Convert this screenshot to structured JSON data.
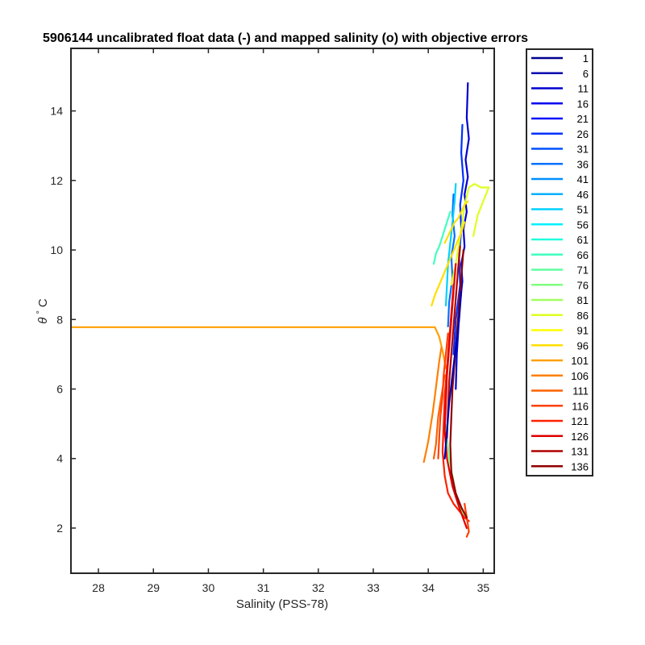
{
  "chart_data": {
    "type": "line",
    "title": "5906144 uncalibrated float data (-) and mapped salinity (o) with objective errors",
    "xlabel": "Salinity (PSS-78)",
    "ylabel_symbol": "θ",
    "ylabel_degree": "°",
    "ylabel_unit": "C",
    "xlim": [
      27.5,
      35.2
    ],
    "ylim": [
      0.7,
      15.8
    ],
    "xticks": [
      "28",
      "29",
      "30",
      "31",
      "32",
      "33",
      "34",
      "35"
    ],
    "yticks": [
      "2",
      "4",
      "6",
      "8",
      "10",
      "12",
      "14"
    ],
    "grid": false,
    "legend_position": "outside-right",
    "legend": [
      "1",
      "6",
      "11",
      "16",
      "21",
      "26",
      "31",
      "36",
      "41",
      "46",
      "51",
      "56",
      "61",
      "66",
      "71",
      "76",
      "81",
      "86",
      "91",
      "96",
      "101",
      "106",
      "111",
      "116",
      "121",
      "126",
      "131",
      "136"
    ],
    "legend_colors": [
      "#00008f",
      "#0000b0",
      "#0000d0",
      "#0000f0",
      "#0010ff",
      "#0030ff",
      "#0050ff",
      "#0070ff",
      "#0090ff",
      "#00b0ff",
      "#00d0ff",
      "#00f0ff",
      "#20ffdf",
      "#40ffbf",
      "#60ff9f",
      "#80ff80",
      "#9fff60",
      "#dfff20",
      "#ffff00",
      "#ffdf00",
      "#ff9f00",
      "#ff8000",
      "#ff6000",
      "#ff4000",
      "#ff2000",
      "#df0000",
      "#b00000",
      "#900000"
    ],
    "series": [
      {
        "color": "#0000d0",
        "x": [
          34.72,
          34.7,
          34.74,
          34.68,
          34.72,
          34.66,
          34.7,
          34.64,
          34.66,
          34.6,
          34.62,
          34.58,
          34.55,
          34.52,
          34.5
        ],
        "y": [
          14.8,
          13.8,
          13.2,
          12.6,
          12.1,
          11.6,
          11.1,
          10.6,
          10.1,
          9.6,
          9.1,
          8.5,
          7.8,
          7.0,
          6.0
        ]
      },
      {
        "color": "#0030ff",
        "x": [
          34.62,
          34.6,
          34.64,
          34.58,
          34.6,
          34.56,
          34.58,
          34.5,
          34.46
        ],
        "y": [
          13.6,
          12.8,
          12.0,
          11.3,
          10.6,
          9.8,
          9.0,
          8.0,
          7.0
        ]
      },
      {
        "color": "#0070ff",
        "x": [
          34.46,
          34.44,
          34.48,
          34.42,
          34.44,
          34.38,
          34.36
        ],
        "y": [
          11.6,
          11.0,
          10.4,
          9.8,
          9.2,
          8.5,
          7.8
        ]
      },
      {
        "color": "#00d0ff",
        "x": [
          34.5,
          34.48,
          34.44,
          34.4,
          34.36,
          34.34,
          34.32
        ],
        "y": [
          11.9,
          11.4,
          10.8,
          10.2,
          9.6,
          9.0,
          8.4
        ]
      },
      {
        "color": "#40ffbf",
        "x": [
          34.1,
          34.14,
          34.2,
          34.26,
          34.3,
          34.36,
          34.4
        ],
        "y": [
          9.6,
          9.9,
          10.1,
          10.4,
          10.6,
          10.9,
          11.1
        ]
      },
      {
        "color": "#80ff80",
        "x": [
          34.3,
          34.34,
          34.38,
          34.44,
          34.5,
          34.56,
          34.6,
          34.66
        ],
        "y": [
          5.1,
          4.6,
          4.0,
          3.5,
          3.0,
          2.7,
          2.5,
          2.3
        ]
      },
      {
        "color": "#dfff20",
        "x": [
          34.42,
          34.5,
          34.56,
          34.62,
          34.66,
          34.74,
          34.84,
          34.96,
          35.1,
          35.05,
          34.9,
          34.82
        ],
        "y": [
          9.0,
          9.6,
          10.2,
          10.8,
          11.3,
          11.8,
          11.9,
          11.8,
          11.8,
          11.6,
          11.0,
          10.4
        ]
      },
      {
        "color": "#ffdf00",
        "x": [
          34.06,
          34.12,
          34.2,
          34.28,
          34.36,
          34.44,
          34.52,
          34.6,
          34.66
        ],
        "y": [
          8.4,
          8.7,
          9.0,
          9.3,
          9.6,
          9.9,
          10.2,
          10.5,
          10.8
        ]
      },
      {
        "color": "#ffdf00",
        "x": [
          34.3,
          34.36,
          34.42,
          34.48,
          34.54,
          34.6,
          34.66,
          34.72
        ],
        "y": [
          10.2,
          10.4,
          10.6,
          10.8,
          10.9,
          11.1,
          11.3,
          11.4
        ]
      },
      {
        "color": "#ff9f00",
        "x": [
          27.5,
          30.0,
          32.0,
          34.0,
          34.12,
          34.2,
          34.26,
          34.32
        ],
        "y": [
          7.78,
          7.78,
          7.78,
          7.78,
          7.78,
          7.5,
          7.1,
          6.6
        ]
      },
      {
        "color": "#ff8000",
        "x": [
          34.24,
          34.2,
          34.16,
          34.12,
          34.08,
          34.04,
          34.0,
          33.96,
          33.92
        ],
        "y": [
          7.2,
          6.8,
          6.3,
          5.8,
          5.3,
          4.9,
          4.5,
          4.2,
          3.9
        ]
      },
      {
        "color": "#ff6000",
        "x": [
          34.3,
          34.26,
          34.22,
          34.18,
          34.16,
          34.14,
          34.1
        ],
        "y": [
          6.4,
          6.0,
          5.6,
          5.2,
          4.8,
          4.4,
          4.0
        ]
      },
      {
        "color": "#ff4000",
        "x": [
          34.36,
          34.32,
          34.28,
          34.26,
          34.22,
          34.2,
          34.18
        ],
        "y": [
          7.6,
          7.0,
          6.4,
          5.8,
          5.2,
          4.6,
          4.0
        ]
      },
      {
        "color": "#ff2000",
        "x": [
          34.46,
          34.42,
          34.38,
          34.34,
          34.3,
          34.28,
          34.26,
          34.3,
          34.36,
          34.46,
          34.56,
          34.66,
          34.74
        ],
        "y": [
          9.0,
          8.2,
          7.4,
          6.6,
          5.8,
          5.0,
          4.2,
          3.5,
          3.0,
          2.7,
          2.5,
          2.3,
          2.2
        ]
      },
      {
        "color": "#df0000",
        "x": [
          34.5,
          34.46,
          34.42,
          34.38,
          34.34,
          34.32,
          34.3,
          34.34,
          34.44,
          34.56,
          34.7
        ],
        "y": [
          9.6,
          8.8,
          8.0,
          7.2,
          6.4,
          5.6,
          4.8,
          4.0,
          3.2,
          2.6,
          2.0
        ]
      },
      {
        "color": "#b00000",
        "x": [
          34.58,
          34.54,
          34.5,
          34.46,
          34.42,
          34.38,
          34.36,
          34.34
        ],
        "y": [
          10.1,
          9.4,
          8.6,
          7.8,
          7.0,
          6.2,
          5.4,
          4.6
        ]
      },
      {
        "color": "#ff4000",
        "x": [
          34.66,
          34.68,
          34.7,
          34.72,
          34.74,
          34.7
        ],
        "y": [
          2.7,
          2.5,
          2.3,
          2.1,
          1.9,
          1.75
        ]
      },
      {
        "color": "#900000",
        "x": [
          34.64,
          34.6,
          34.56,
          34.52,
          34.48,
          34.44,
          34.42,
          34.4,
          34.42,
          34.5,
          34.6,
          34.7
        ],
        "y": [
          10.0,
          9.2,
          8.4,
          7.6,
          6.8,
          6.0,
          5.2,
          4.4,
          3.6,
          3.0,
          2.6,
          2.3
        ]
      },
      {
        "color": "#0000b0",
        "x": [
          34.6,
          34.56,
          34.5,
          34.44,
          34.38,
          34.34,
          34.3
        ],
        "y": [
          8.8,
          8.0,
          7.2,
          6.4,
          5.6,
          4.8,
          4.0
        ]
      }
    ]
  }
}
